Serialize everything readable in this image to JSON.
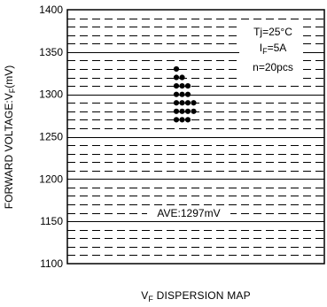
{
  "chart_data": {
    "type": "scatter",
    "ylabel": "FORWARD VOLTAGE:V",
    "ylabel_sub": "F",
    "ylabel_unit": "(mV)",
    "ylim": [
      1100,
      1400
    ],
    "yticks": [
      1100,
      1150,
      1200,
      1250,
      1300,
      1350,
      1400
    ],
    "minor_step": 10,
    "xlabel": "V",
    "xlabel_sub": "F",
    "xlabel_rest": " DISPERSION MAP",
    "annotations": {
      "tj": "Tj=25°C",
      "if_main": "I",
      "if_sub": "F",
      "if_rest": "=5A",
      "n": "n=20pcs",
      "ave": "AVE:1297mV"
    },
    "series": [
      {
        "points": [
          {
            "col": 0,
            "y": 1330
          },
          {
            "col": 0,
            "y": 1320
          },
          {
            "col": 1,
            "y": 1320
          },
          {
            "col": 0,
            "y": 1310
          },
          {
            "col": 1,
            "y": 1310
          },
          {
            "col": 2,
            "y": 1310
          },
          {
            "col": 0,
            "y": 1300
          },
          {
            "col": 1,
            "y": 1300
          },
          {
            "col": 2,
            "y": 1300
          },
          {
            "col": 0,
            "y": 1290
          },
          {
            "col": 1,
            "y": 1290
          },
          {
            "col": 2,
            "y": 1290
          },
          {
            "col": 3,
            "y": 1290
          },
          {
            "col": 0,
            "y": 1280
          },
          {
            "col": 1,
            "y": 1280
          },
          {
            "col": 2,
            "y": 1280
          },
          {
            "col": 3,
            "y": 1280
          },
          {
            "col": 0,
            "y": 1270
          },
          {
            "col": 1,
            "y": 1270
          },
          {
            "col": 2,
            "y": 1270
          }
        ]
      }
    ]
  }
}
